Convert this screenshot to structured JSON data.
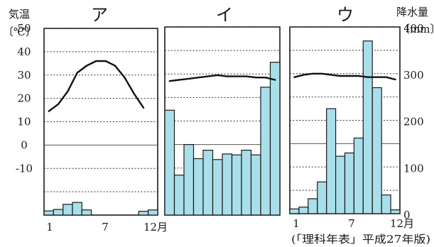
{
  "left_axis": {
    "label_line1": "気温",
    "label_line2": "〔℃〕",
    "ticks": [
      "50",
      "40",
      "30",
      "20",
      "10",
      "0",
      "-10"
    ],
    "tick_values": [
      50,
      40,
      30,
      20,
      10,
      0,
      -10
    ],
    "ylim": [
      -30,
      50
    ]
  },
  "right_axis": {
    "label_line1": "降水量",
    "label_line2": "〔mm〕",
    "ticks": [
      "400",
      "300",
      "200",
      "100",
      "0"
    ],
    "tick_values": [
      400,
      300,
      200,
      100,
      0
    ],
    "ylim": [
      0,
      400
    ]
  },
  "x_axis": {
    "ticks": [
      "1",
      "7",
      "12月"
    ],
    "tick_months": [
      1,
      7,
      12
    ]
  },
  "source": "(「理科年表」平成27年版)",
  "chart_data": [
    {
      "type": "bar",
      "title": "ア",
      "categories": [
        "1",
        "2",
        "3",
        "4",
        "5",
        "6",
        "7",
        "8",
        "9",
        "10",
        "11",
        "12"
      ],
      "series": [
        {
          "values": [
            9,
            12,
            23,
            27,
            11,
            0,
            0,
            0,
            0,
            0,
            8,
            11
          ]
        }
      ],
      "temperature": [
        14.5,
        17.5,
        23,
        31,
        34,
        36,
        36,
        34,
        29,
        22,
        16
      ],
      "temperature_months": [
        1,
        2,
        3,
        4,
        5,
        6,
        7,
        8,
        9,
        10,
        11
      ],
      "ylim_temp": [
        -30,
        50
      ],
      "ylim_precip": [
        0,
        400
      ]
    },
    {
      "type": "bar",
      "title": "イ",
      "categories": [
        "1",
        "2",
        "3",
        "4",
        "5",
        "6",
        "7",
        "8",
        "9",
        "10",
        "11",
        "12"
      ],
      "series": [
        {
          "values": [
            223,
            85,
            150,
            120,
            138,
            118,
            130,
            128,
            138,
            128,
            272,
            325
          ]
        }
      ],
      "temperature": [
        27,
        27.5,
        28,
        28.5,
        29,
        29.5,
        29,
        29,
        29,
        28.5,
        28.5,
        27.5
      ],
      "temperature_months": [
        1,
        2,
        3,
        4,
        5,
        6,
        7,
        8,
        9,
        10,
        11,
        12
      ],
      "ylim_temp": [
        -30,
        50
      ],
      "ylim_precip": [
        0,
        400
      ]
    },
    {
      "type": "bar",
      "title": "ウ",
      "categories": [
        "1",
        "2",
        "3",
        "4",
        "5",
        "6",
        "7",
        "8",
        "9",
        "10",
        "11",
        "12"
      ],
      "series": [
        {
          "values": [
            10,
            14,
            32,
            68,
            225,
            123,
            130,
            162,
            370,
            270,
            40,
            8
          ]
        }
      ],
      "temperature": [
        28.5,
        29.5,
        30,
        30,
        29.5,
        29,
        29,
        29,
        28.5,
        28.5,
        28.5,
        27.5
      ],
      "temperature_months": [
        1,
        2,
        3,
        4,
        5,
        6,
        7,
        8,
        9,
        10,
        11,
        12
      ],
      "ylim_temp": [
        -30,
        50
      ],
      "ylim_precip": [
        0,
        400
      ]
    }
  ]
}
